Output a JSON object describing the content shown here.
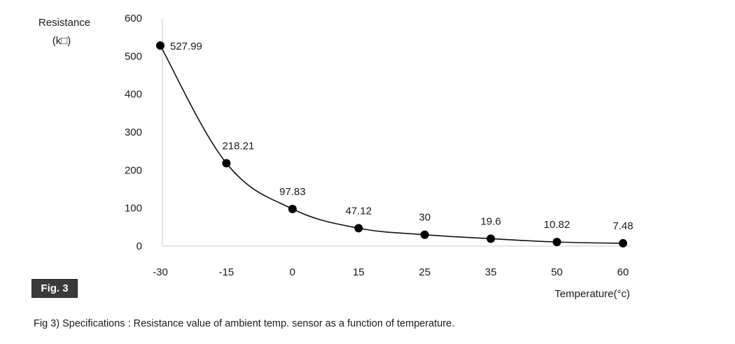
{
  "figure_badge": "Fig. 3",
  "caption": "Fig 3) Specifications : Resistance value of ambient temp. sensor as a function of temperature.",
  "chart_data": {
    "type": "line",
    "title": "",
    "ylabel_line1": "Resistance",
    "ylabel_line2": "(k□)",
    "xlabel": "Temperature(°c)",
    "categories": [
      "-30",
      "-15",
      "0",
      "15",
      "25",
      "35",
      "50",
      "60"
    ],
    "series": [
      {
        "values": [
          527.99,
          218.21,
          97.83,
          47.12,
          30,
          19.6,
          10.82,
          7.48
        ],
        "labels": [
          "527.99",
          "218.21",
          "97.83",
          "47.12",
          "30",
          "19.6",
          "10.82",
          "7.48"
        ]
      }
    ],
    "ylim": [
      0,
      600
    ],
    "yticks": [
      "0",
      "100",
      "200",
      "300",
      "400",
      "500",
      "600"
    ],
    "x_axis_kind": "categorical, evenly spaced",
    "smooth_line": true,
    "grid": false,
    "legend": "none",
    "colors": {
      "line": "#111111",
      "marker": "#000000",
      "axis": "#c8c8c8"
    }
  }
}
